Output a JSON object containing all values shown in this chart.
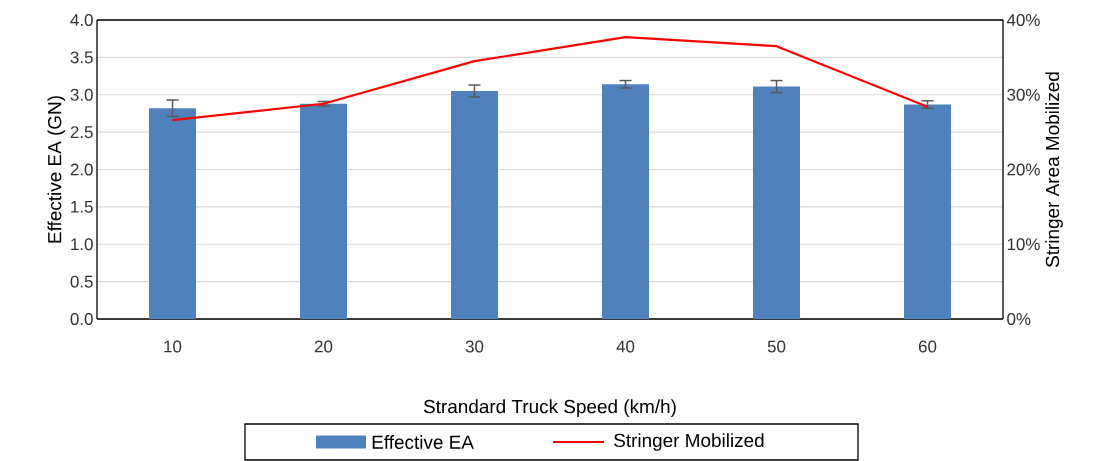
{
  "chart_data": {
    "type": "bar",
    "xlabel": "Strandard Truck Speed (km/h)",
    "ylabel": "Effective EA (GN)",
    "y2label": "Stringer Area Mobilized",
    "categories": [
      "10",
      "20",
      "30",
      "40",
      "50",
      "60"
    ],
    "series": [
      {
        "name": "Effective EA",
        "color": "#4f81bd",
        "values": [
          2.82,
          2.88,
          3.05,
          3.14,
          3.11,
          2.87
        ],
        "errors": [
          0.11,
          0.03,
          0.08,
          0.05,
          0.08,
          0.05
        ]
      },
      {
        "name": "Stringer Mobilized",
        "type": "line",
        "axis": "y2",
        "color": "#ff0000",
        "values": [
          26.6,
          28.8,
          34.5,
          37.7,
          36.5,
          28.4
        ]
      }
    ],
    "ylim": [
      0,
      4
    ],
    "yticks": [
      {
        "value": 0,
        "label": "0.0"
      },
      {
        "value": 0.5,
        "label": "0.5"
      },
      {
        "value": 1,
        "label": "1.0"
      },
      {
        "value": 1.5,
        "label": "1.5"
      },
      {
        "value": 2,
        "label": "2.0"
      },
      {
        "value": 2.5,
        "label": "2.5"
      },
      {
        "value": 3,
        "label": "3.0"
      },
      {
        "value": 3.5,
        "label": "3.5"
      },
      {
        "value": 4,
        "label": "4.0"
      }
    ],
    "y2lim": [
      0,
      40
    ],
    "y2ticks": [
      {
        "value": 0,
        "label": "0%"
      },
      {
        "value": 10,
        "label": "10%"
      },
      {
        "value": 20,
        "label": "20%"
      },
      {
        "value": 30,
        "label": "30%"
      },
      {
        "value": 40,
        "label": "40%"
      }
    ],
    "grid": "y",
    "legend": "bottom",
    "marker": "none",
    "line_style": "solid"
  }
}
